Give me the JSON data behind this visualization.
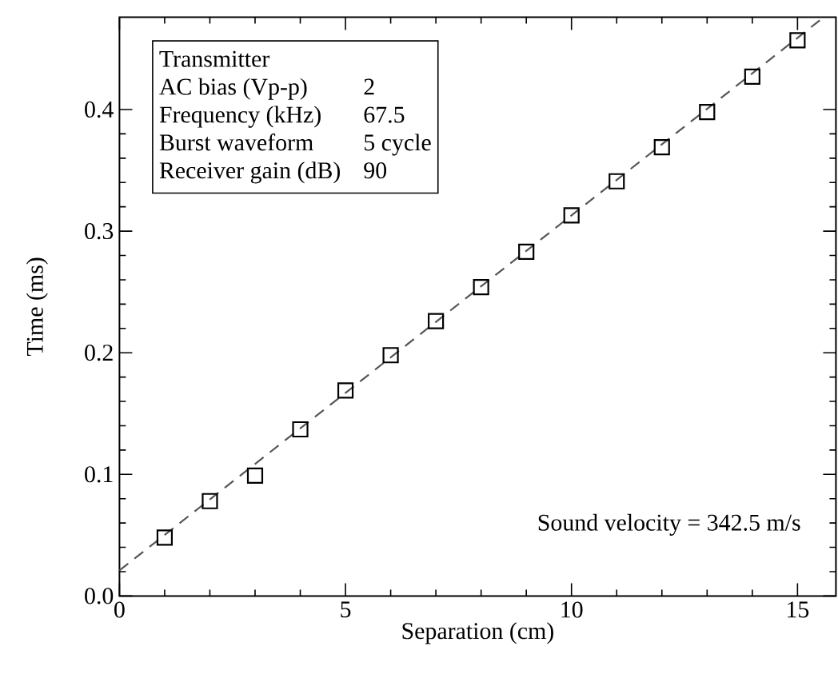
{
  "chart_data": {
    "type": "scatter",
    "xlabel": "Separation (cm)",
    "ylabel": "Time (ms)",
    "xlim": [
      0,
      15.85
    ],
    "ylim": [
      0,
      0.476
    ],
    "xticks": [
      0,
      5,
      10,
      15
    ],
    "yticks": [
      {
        "value": 0,
        "label": "0.0"
      },
      0.1,
      0.2,
      0.3,
      0.4
    ],
    "grid": false,
    "series": [
      {
        "marker": "square",
        "color": "#000000",
        "x": [
          1,
          2,
          3,
          4,
          5,
          6,
          7,
          8,
          9,
          10,
          11,
          12,
          13,
          14,
          15
        ],
        "values": [
          0.048,
          0.078,
          0.099,
          0.137,
          0.169,
          0.198,
          0.226,
          0.254,
          0.283,
          0.313,
          0.341,
          0.369,
          0.398,
          0.427,
          0.457
        ]
      },
      {
        "type": "line",
        "line_style": "dashed",
        "marker": "none",
        "color": "#555555",
        "x": [
          0,
          15.55
        ],
        "values": [
          0.021,
          0.475
        ]
      }
    ],
    "annotations": [
      "Transmitter",
      "AC bias (Vp-p)",
      "2",
      "Frequency (kHz)",
      "67.5",
      "Burst waveform",
      "5 cycle",
      "Receiver gain (dB)",
      "90",
      "Sound velocity =  342.5 m/s"
    ]
  }
}
